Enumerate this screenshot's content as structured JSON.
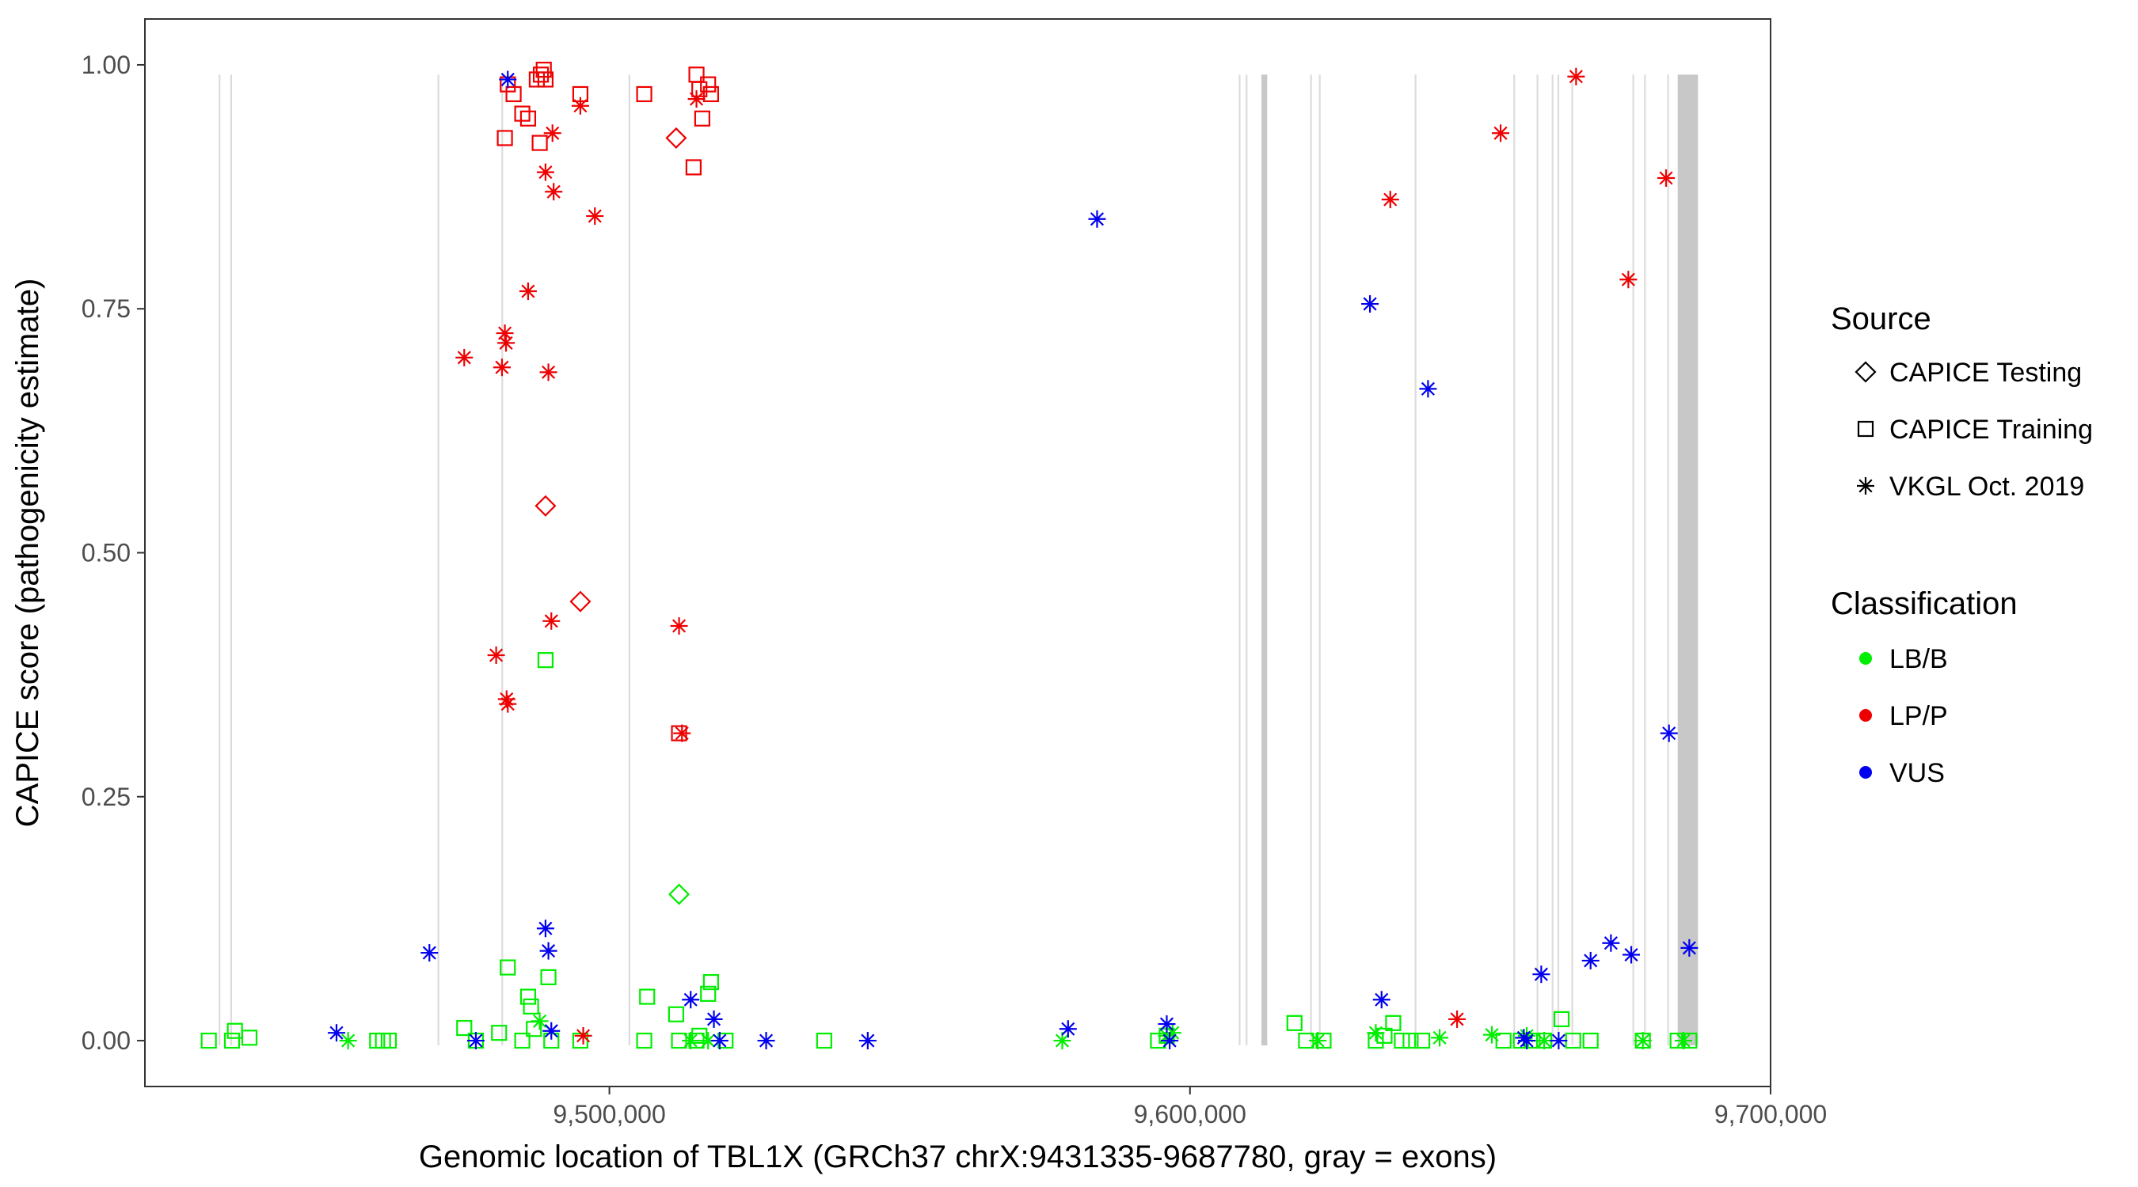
{
  "chart_data": {
    "type": "scatter",
    "xlabel": "Genomic location of TBL1X (GRCh37 chrX:9431335-9687780, gray = exons)",
    "ylabel": "CAPICE score (pathogenicity estimate)",
    "xlim": [
      9420000,
      9700000
    ],
    "ylim": [
      -0.047,
      1.047
    ],
    "x_ticks": [
      9500000,
      9600000,
      9700000
    ],
    "x_tick_labels": [
      "9,500,000",
      "9,600,000",
      "9,700,000"
    ],
    "y_ticks": [
      0,
      0.25,
      0.5,
      0.75,
      1.0
    ],
    "y_tick_labels": [
      "0.00",
      "0.25",
      "0.50",
      "0.75",
      "1.00"
    ],
    "grid": false,
    "legend": {
      "placement": "right",
      "source_title": "Source",
      "source_items": [
        {
          "shape": "diamond",
          "label": "CAPICE Testing"
        },
        {
          "shape": "square",
          "label": "CAPICE Training"
        },
        {
          "shape": "asterisk",
          "label": "VKGL Oct. 2019"
        }
      ],
      "class_title": "Classification",
      "class_items": [
        {
          "key": "LB/B",
          "label": "LB/B",
          "color": "#00ee00"
        },
        {
          "key": "LP/P",
          "label": "LP/P",
          "color": "#ee0000"
        },
        {
          "key": "VUS",
          "label": "VUS",
          "color": "#0000ee"
        }
      ]
    },
    "exons": [
      {
        "start": 9432700,
        "end": 9433000
      },
      {
        "start": 9434700,
        "end": 9435000
      },
      {
        "start": 9470400,
        "end": 9470700
      },
      {
        "start": 9481400,
        "end": 9481700
      },
      {
        "start": 9503300,
        "end": 9503600
      },
      {
        "start": 9608400,
        "end": 9608700
      },
      {
        "start": 9609600,
        "end": 9609900
      },
      {
        "start": 9612300,
        "end": 9613300
      },
      {
        "start": 9620700,
        "end": 9621000
      },
      {
        "start": 9622200,
        "end": 9622500
      },
      {
        "start": 9638700,
        "end": 9639000
      },
      {
        "start": 9655700,
        "end": 9656000
      },
      {
        "start": 9659700,
        "end": 9660000
      },
      {
        "start": 9662300,
        "end": 9662600
      },
      {
        "start": 9663300,
        "end": 9663600
      },
      {
        "start": 9665700,
        "end": 9666000
      },
      {
        "start": 9676200,
        "end": 9676500
      },
      {
        "start": 9678200,
        "end": 9678500
      },
      {
        "start": 9682200,
        "end": 9682500
      },
      {
        "start": 9684000,
        "end": 9687500
      }
    ],
    "series": [
      {
        "source": "CAPICE Testing",
        "class": "LP/P",
        "points": [
          [
            9489000,
            0.548
          ],
          [
            9495000,
            0.45
          ],
          [
            9511500,
            0.925
          ]
        ]
      },
      {
        "source": "CAPICE Testing",
        "class": "LB/B",
        "points": [
          [
            9512000,
            0.15
          ]
        ]
      },
      {
        "source": "CAPICE Training",
        "class": "LP/P",
        "points": [
          [
            9482000,
            0.925
          ],
          [
            9482500,
            0.98
          ],
          [
            9483500,
            0.97
          ],
          [
            9485000,
            0.95
          ],
          [
            9486000,
            0.945
          ],
          [
            9487500,
            0.985
          ],
          [
            9488000,
            0.92
          ],
          [
            9488200,
            0.99
          ],
          [
            9488700,
            0.995
          ],
          [
            9489000,
            0.985
          ],
          [
            9495000,
            0.97
          ],
          [
            9506000,
            0.97
          ],
          [
            9512000,
            0.315
          ],
          [
            9514500,
            0.895
          ],
          [
            9515000,
            0.99
          ],
          [
            9515500,
            0.975
          ],
          [
            9516000,
            0.945
          ],
          [
            9517000,
            0.98
          ],
          [
            9517500,
            0.97
          ]
        ]
      },
      {
        "source": "CAPICE Training",
        "class": "LB/B",
        "points": [
          [
            9431000,
            0.0
          ],
          [
            9435000,
            0.0
          ],
          [
            9435500,
            0.01
          ],
          [
            9438000,
            0.003
          ],
          [
            9460000,
            0.0
          ],
          [
            9461000,
            0.0
          ],
          [
            9462000,
            0.0
          ],
          [
            9475000,
            0.013
          ],
          [
            9477000,
            0.0
          ],
          [
            9481000,
            0.008
          ],
          [
            9482500,
            0.075
          ],
          [
            9485000,
            0.0
          ],
          [
            9486000,
            0.045
          ],
          [
            9486500,
            0.035
          ],
          [
            9487000,
            0.012
          ],
          [
            9489000,
            0.39
          ],
          [
            9489500,
            0.065
          ],
          [
            9490000,
            0.0
          ],
          [
            9495000,
            0.0
          ],
          [
            9506000,
            0.0
          ],
          [
            9506500,
            0.045
          ],
          [
            9511500,
            0.027
          ],
          [
            9512000,
            0.0
          ],
          [
            9515000,
            0.0
          ],
          [
            9515500,
            0.005
          ],
          [
            9517000,
            0.048
          ],
          [
            9517500,
            0.06
          ],
          [
            9520000,
            0.0
          ],
          [
            9537000,
            0.0
          ],
          [
            9594500,
            0.0
          ],
          [
            9596000,
            0.005
          ],
          [
            9618000,
            0.018
          ],
          [
            9620000,
            0.0
          ],
          [
            9623000,
            0.0
          ],
          [
            9632000,
            0.0
          ],
          [
            9633500,
            0.005
          ],
          [
            9635000,
            0.018
          ],
          [
            9636500,
            0.0
          ],
          [
            9638000,
            0.0
          ],
          [
            9640000,
            0.0
          ],
          [
            9654000,
            0.0
          ],
          [
            9657000,
            0.0
          ],
          [
            9659000,
            0.0
          ],
          [
            9661000,
            0.0
          ],
          [
            9664000,
            0.022
          ],
          [
            9666000,
            0.0
          ],
          [
            9669000,
            0.0
          ],
          [
            9678000,
            0.0
          ],
          [
            9684000,
            0.0
          ],
          [
            9686000,
            0.0
          ]
        ]
      },
      {
        "source": "VKGL Oct. 2019",
        "class": "LP/P",
        "points": [
          [
            9475000,
            0.7
          ],
          [
            9480500,
            0.395
          ],
          [
            9481500,
            0.69
          ],
          [
            9482000,
            0.725
          ],
          [
            9482200,
            0.715
          ],
          [
            9482300,
            0.35
          ],
          [
            9482500,
            0.345
          ],
          [
            9486000,
            0.768
          ],
          [
            9489000,
            0.89
          ],
          [
            9489500,
            0.685
          ],
          [
            9490000,
            0.43
          ],
          [
            9490200,
            0.93
          ],
          [
            9490400,
            0.87
          ],
          [
            9495000,
            0.958
          ],
          [
            9495500,
            0.005
          ],
          [
            9497500,
            0.845
          ],
          [
            9512000,
            0.425
          ],
          [
            9512500,
            0.315
          ],
          [
            9515000,
            0.965
          ],
          [
            9634500,
            0.862
          ],
          [
            9646000,
            0.022
          ],
          [
            9653500,
            0.93
          ],
          [
            9666500,
            0.988
          ],
          [
            9675500,
            0.78
          ],
          [
            9682000,
            0.884
          ]
        ]
      },
      {
        "source": "VKGL Oct. 2019",
        "class": "LB/B",
        "points": [
          [
            9455000,
            0.0
          ],
          [
            9488000,
            0.02
          ],
          [
            9514000,
            0.0
          ],
          [
            9517000,
            0.0
          ],
          [
            9578000,
            0.0
          ],
          [
            9596000,
            0.005
          ],
          [
            9597000,
            0.008
          ],
          [
            9622000,
            0.0
          ],
          [
            9632000,
            0.008
          ],
          [
            9643000,
            0.003
          ],
          [
            9652000,
            0.006
          ],
          [
            9658000,
            0.005
          ],
          [
            9661000,
            0.0
          ],
          [
            9678000,
            0.0
          ],
          [
            9685000,
            0.0
          ]
        ]
      },
      {
        "source": "VKGL Oct. 2019",
        "class": "VUS",
        "points": [
          [
            9453000,
            0.008
          ],
          [
            9469000,
            0.09
          ],
          [
            9477000,
            0.0
          ],
          [
            9482500,
            0.985
          ],
          [
            9489000,
            0.115
          ],
          [
            9489500,
            0.092
          ],
          [
            9490000,
            0.01
          ],
          [
            9514000,
            0.042
          ],
          [
            9518000,
            0.022
          ],
          [
            9519000,
            0.0
          ],
          [
            9527000,
            0.0
          ],
          [
            9544500,
            0.0
          ],
          [
            9579000,
            0.012
          ],
          [
            9584000,
            0.842
          ],
          [
            9596000,
            0.017
          ],
          [
            9596500,
            0.0
          ],
          [
            9631000,
            0.755
          ],
          [
            9633000,
            0.042
          ],
          [
            9641000,
            0.668
          ],
          [
            9657500,
            0.003
          ],
          [
            9658000,
            0.0
          ],
          [
            9660500,
            0.068
          ],
          [
            9663500,
            0.0
          ],
          [
            9669000,
            0.082
          ],
          [
            9672500,
            0.1
          ],
          [
            9676000,
            0.088
          ],
          [
            9682500,
            0.315
          ],
          [
            9686000,
            0.095
          ]
        ]
      }
    ]
  }
}
